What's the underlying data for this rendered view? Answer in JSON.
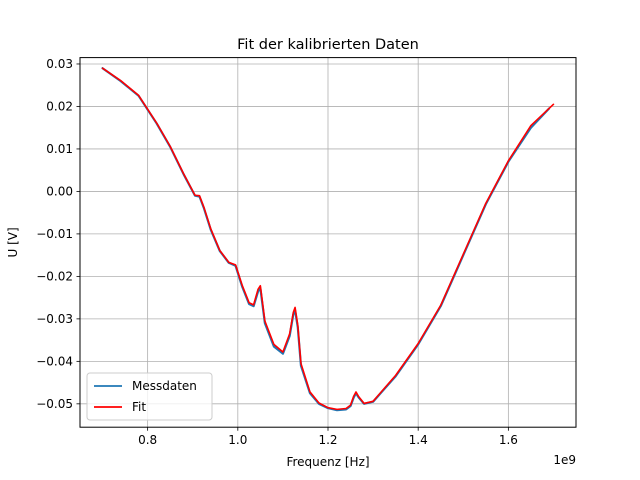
{
  "chart_data": {
    "type": "line",
    "title": "Fit der kalibrierten Daten",
    "xlabel": "Frequenz [Hz]",
    "ylabel": "U [V]",
    "x_offset_label": "1e9",
    "xlim": [
      0.65,
      1.75
    ],
    "ylim": [
      -0.0555,
      0.0315
    ],
    "x_scale_factor": 1000000000,
    "xticks": [
      0.8,
      1.0,
      1.2,
      1.4,
      1.6
    ],
    "xtick_labels": [
      "0.8",
      "1.0",
      "1.2",
      "1.4",
      "1.6"
    ],
    "yticks": [
      0.03,
      0.02,
      0.01,
      0.0,
      -0.01,
      -0.02,
      -0.03,
      -0.04,
      -0.05
    ],
    "ytick_labels": [
      "0.03",
      "0.02",
      "0.01",
      "0.00",
      "−0.01",
      "−0.02",
      "−0.03",
      "−0.04",
      "−0.05"
    ],
    "grid": true,
    "legend_position": "bottom-left",
    "series": [
      {
        "name": "Messdaten",
        "color": "#1f77b4",
        "x": [
          0.7,
          0.74,
          0.78,
          0.82,
          0.85,
          0.88,
          0.905,
          0.915,
          0.925,
          0.94,
          0.96,
          0.98,
          0.995,
          1.01,
          1.025,
          1.035,
          1.045,
          1.05,
          1.06,
          1.08,
          1.1,
          1.115,
          1.123,
          1.127,
          1.133,
          1.14,
          1.16,
          1.18,
          1.2,
          1.22,
          1.24,
          1.25,
          1.257,
          1.262,
          1.268,
          1.28,
          1.3,
          1.35,
          1.4,
          1.45,
          1.5,
          1.55,
          1.6,
          1.65,
          1.69
        ],
        "values": [
          0.029,
          0.026,
          0.0225,
          0.016,
          0.0105,
          0.004,
          -0.001,
          -0.0012,
          -0.004,
          -0.009,
          -0.014,
          -0.0168,
          -0.0175,
          -0.0225,
          -0.0265,
          -0.027,
          -0.0235,
          -0.0228,
          -0.031,
          -0.0365,
          -0.0382,
          -0.034,
          -0.029,
          -0.028,
          -0.032,
          -0.041,
          -0.0475,
          -0.05,
          -0.051,
          -0.0515,
          -0.0513,
          -0.0505,
          -0.0485,
          -0.0475,
          -0.0485,
          -0.05,
          -0.0495,
          -0.0435,
          -0.036,
          -0.027,
          -0.015,
          -0.003,
          0.007,
          0.015,
          0.0195
        ]
      },
      {
        "name": "Fit",
        "color": "#ff0000",
        "x": [
          0.7,
          0.74,
          0.78,
          0.82,
          0.85,
          0.88,
          0.905,
          0.915,
          0.925,
          0.94,
          0.96,
          0.98,
          0.995,
          1.01,
          1.025,
          1.035,
          1.045,
          1.05,
          1.06,
          1.08,
          1.1,
          1.115,
          1.123,
          1.127,
          1.133,
          1.14,
          1.16,
          1.18,
          1.2,
          1.22,
          1.24,
          1.25,
          1.257,
          1.262,
          1.268,
          1.28,
          1.3,
          1.35,
          1.4,
          1.45,
          1.5,
          1.55,
          1.6,
          1.65,
          1.7
        ],
        "values": [
          0.029,
          0.0261,
          0.0226,
          0.0161,
          0.0106,
          0.0041,
          -0.0009,
          -0.001,
          -0.0038,
          -0.0088,
          -0.0139,
          -0.0167,
          -0.0173,
          -0.0222,
          -0.0262,
          -0.0267,
          -0.023,
          -0.0222,
          -0.0305,
          -0.036,
          -0.0378,
          -0.0335,
          -0.0285,
          -0.0273,
          -0.0315,
          -0.0405,
          -0.0472,
          -0.0498,
          -0.0509,
          -0.0513,
          -0.0511,
          -0.0503,
          -0.0482,
          -0.0472,
          -0.0483,
          -0.0499,
          -0.0494,
          -0.0433,
          -0.0358,
          -0.0268,
          -0.0148,
          -0.0028,
          0.0072,
          0.0155,
          0.0205
        ]
      }
    ]
  }
}
